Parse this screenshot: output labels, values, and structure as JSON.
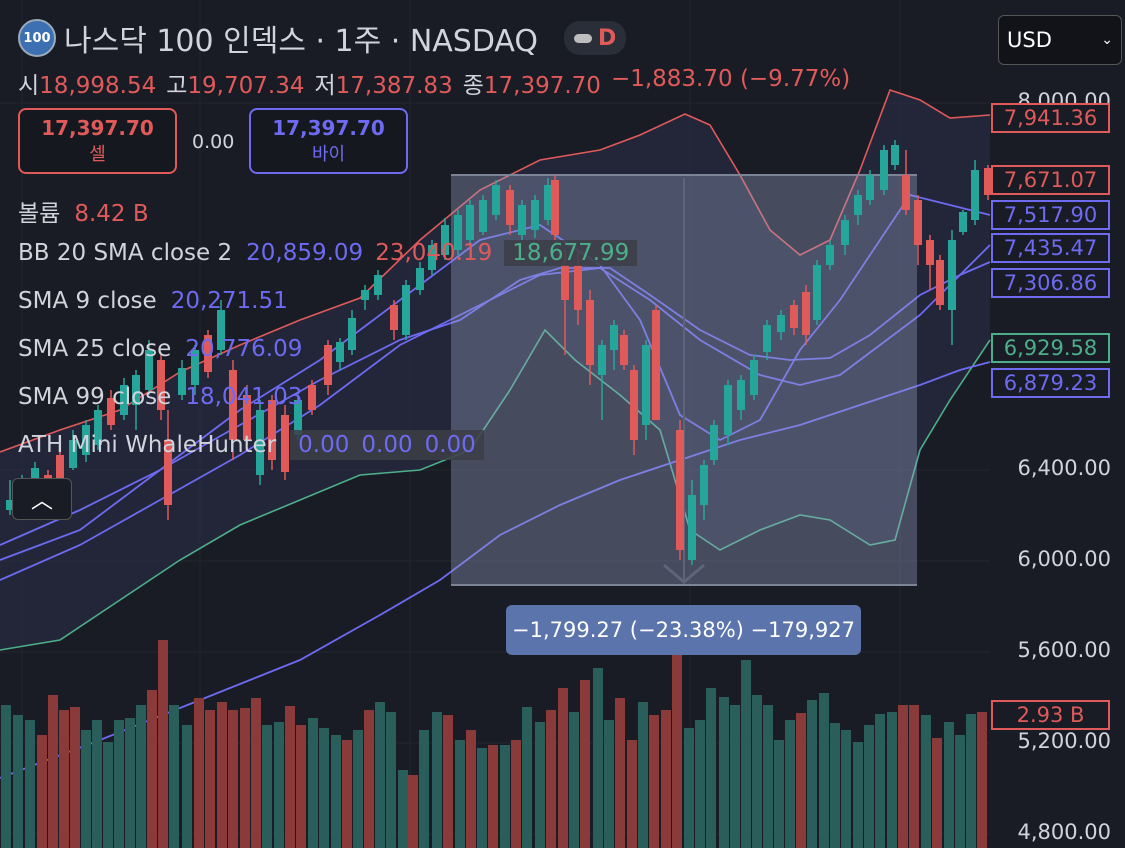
{
  "header": {
    "symbol_badge": "100",
    "title": "나스닥 100 인덱스 · 1주 · NASDAQ",
    "pill_letter": "D",
    "currency": "USD",
    "ohlc": [
      {
        "k": "시",
        "v": "18,998.54"
      },
      {
        "k": "고",
        "v": "19,707.34"
      },
      {
        "k": "저",
        "v": "17,387.83"
      },
      {
        "k": "종",
        "v": "17,397.70"
      }
    ],
    "change": "−1,883.70 (−9.77%)"
  },
  "trade": {
    "sell_price": "17,397.70",
    "sell_label": "셀",
    "spread": "0.00",
    "buy_price": "17,397.70",
    "buy_label": "바이"
  },
  "legend": {
    "volume_label": "볼륨",
    "volume_value": "8.42 B",
    "bb_label": "BB 20 SMA close 2",
    "bb_values": [
      "20,859.09",
      "23,040.19",
      "18,677.99"
    ],
    "sma9_label": "SMA 9 close",
    "sma9_value": "20,271.51",
    "sma25_label": "SMA 25 close",
    "sma25_value": "20,776.09",
    "sma99_label": "SMA 99 close",
    "sma99_value": "18,041.03",
    "ath_label": "ATH Mini WhaleHunter",
    "ath_values": [
      "0.00",
      "0.00",
      "0.00"
    ]
  },
  "measure": {
    "label": "−1,799.27 (−23.38%) −179,927"
  },
  "axis": {
    "ticks": [
      "8,000.00",
      "6,400.00",
      "6,000.00",
      "5,600.00",
      "5,200.00",
      "4,800.00"
    ],
    "tags": [
      {
        "text": "7,941.36",
        "color": "#e05a5a"
      },
      {
        "text": "7,671.07",
        "color": "#e05a5a"
      },
      {
        "text": "7,517.90",
        "color": "#6e6af2"
      },
      {
        "text": "7,435.47",
        "color": "#6e6af2"
      },
      {
        "text": "7,306.86",
        "color": "#6e6af2"
      },
      {
        "text": "6,929.58",
        "color": "#4caf8a"
      },
      {
        "text": "6,879.23",
        "color": "#6e6af2"
      },
      {
        "text": "2.93 B",
        "color": "#e05a5a"
      }
    ]
  },
  "colors": {
    "up": "#26a69a",
    "down": "#e05a5a",
    "bb_upper": "#e05a5a",
    "bb_lower": "#4caf8a",
    "sma": "#6e6af2",
    "measure_fill": "#5b74ac"
  }
}
